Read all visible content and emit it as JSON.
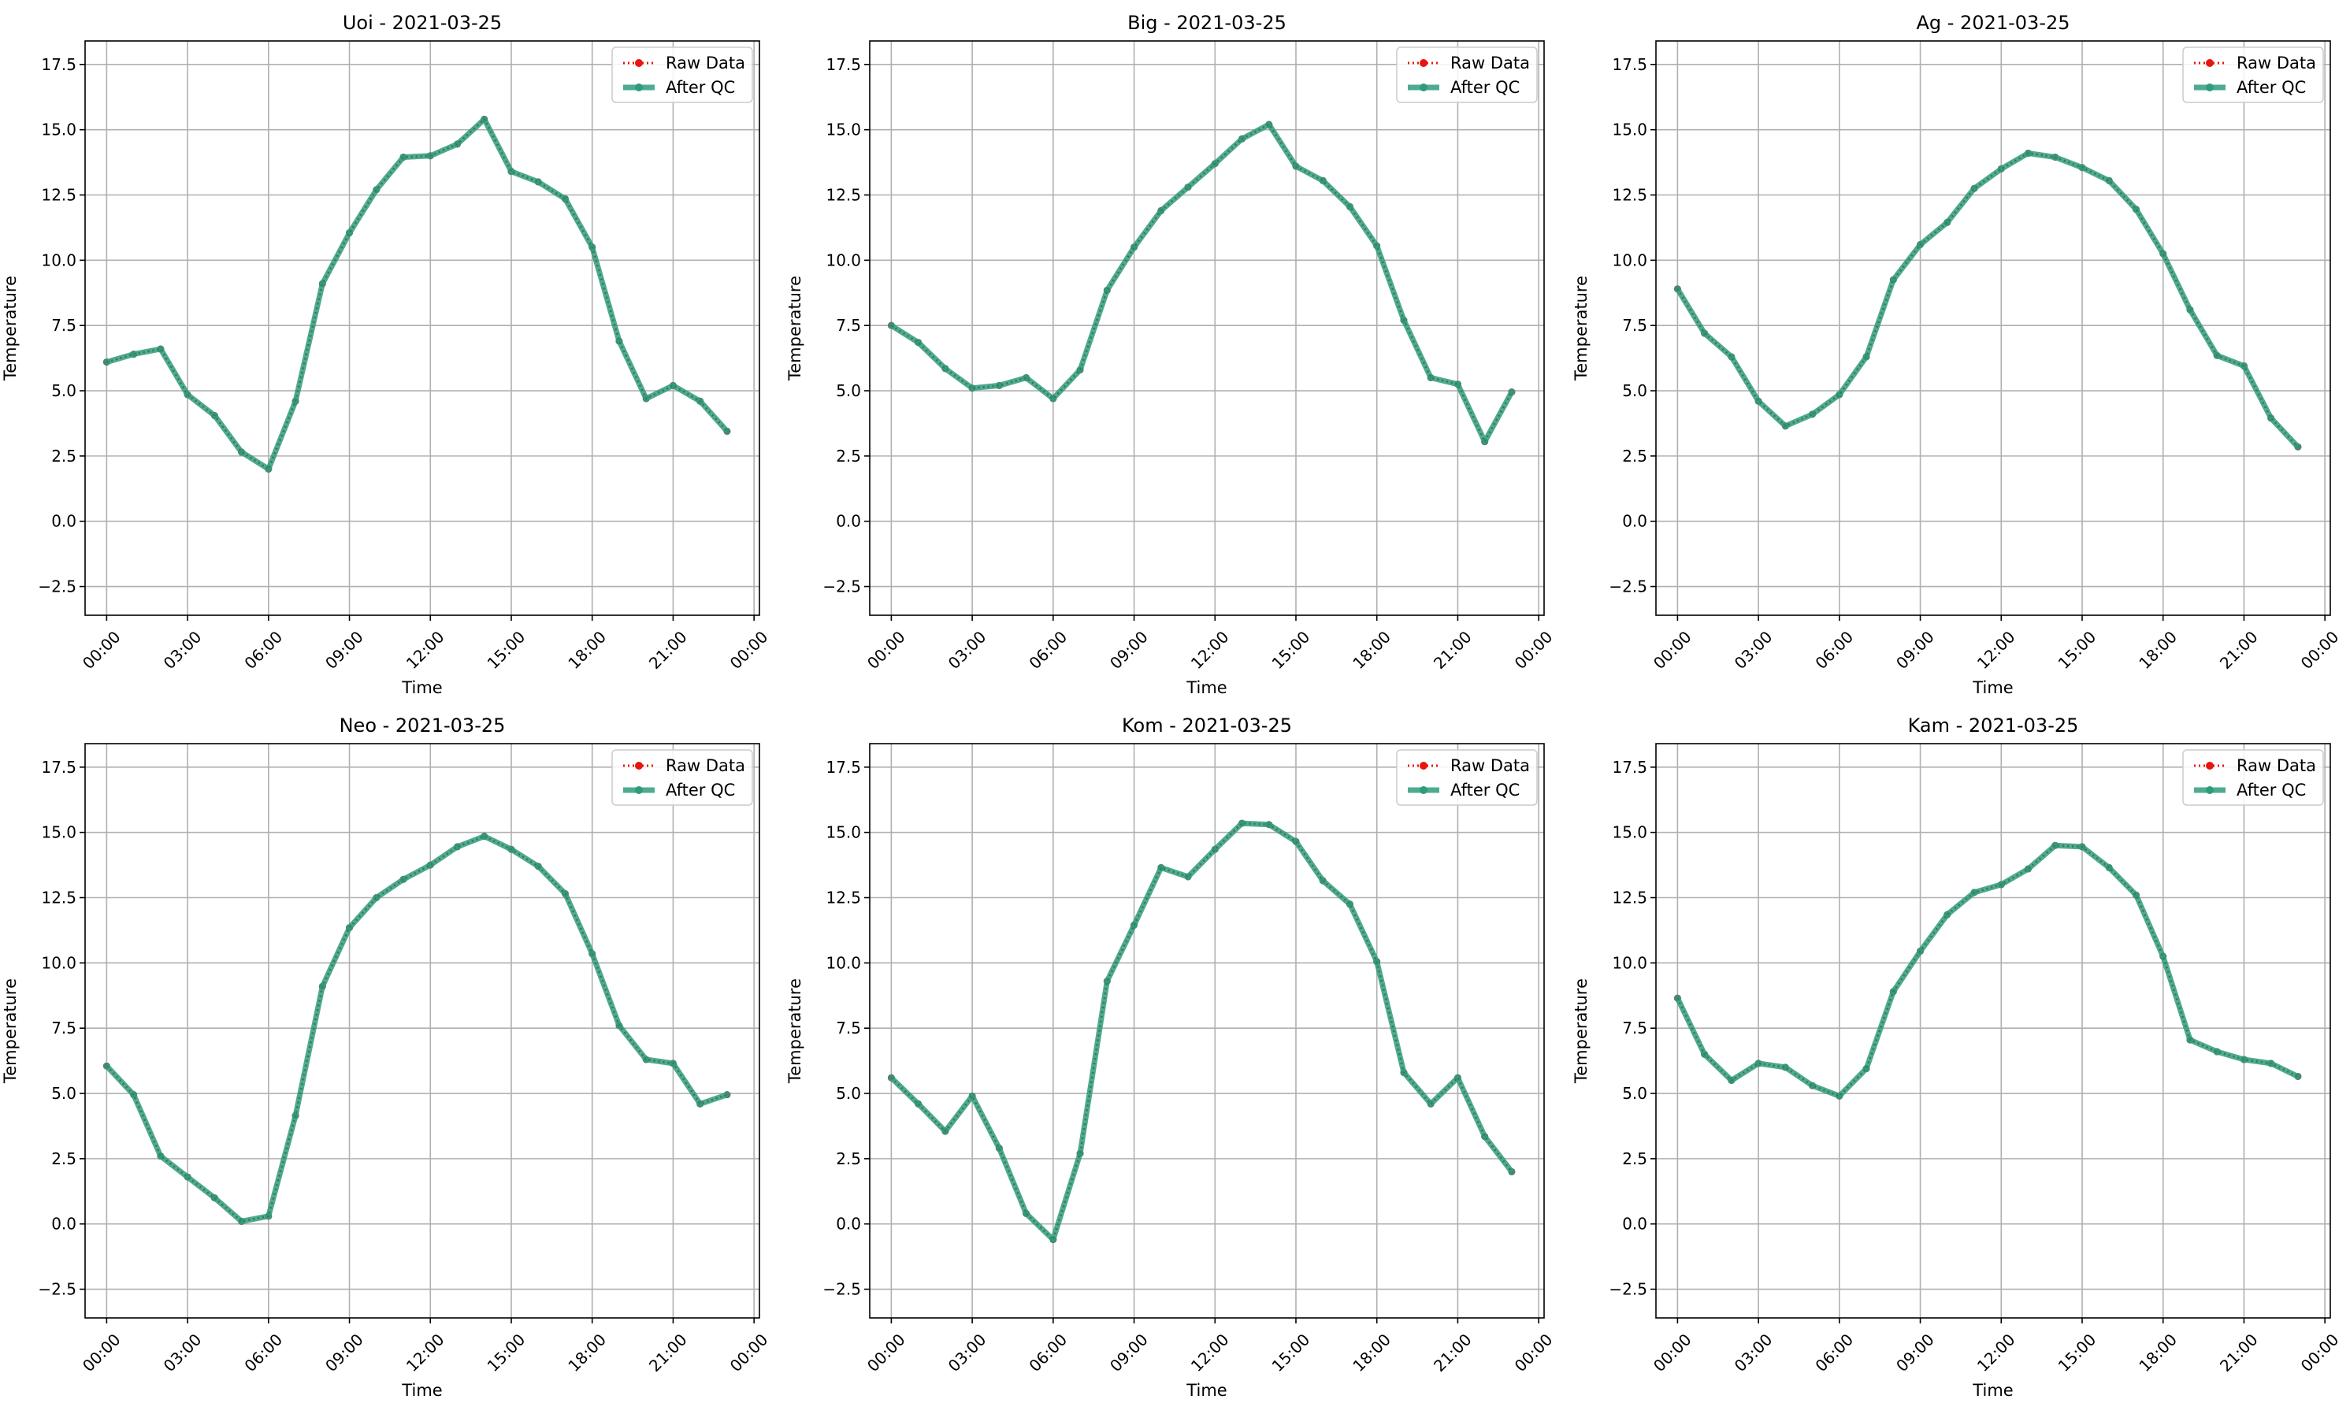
{
  "chart_data": [
    {
      "type": "line",
      "title": "Uoi - 2021-03-25",
      "xlabel": "Time",
      "ylabel": "Temperature",
      "ylim": [
        -3.6,
        18.4
      ],
      "yticks": [
        -2.5,
        0.0,
        2.5,
        5.0,
        7.5,
        10.0,
        12.5,
        15.0,
        17.5
      ],
      "xlim_hours": [
        -0.8,
        24.2
      ],
      "xtick_hours": [
        0,
        3,
        6,
        9,
        12,
        15,
        18,
        21,
        24
      ],
      "xtick_labels": [
        "00:00",
        "03:00",
        "06:00",
        "09:00",
        "12:00",
        "15:00",
        "18:00",
        "21:00",
        "00:00"
      ],
      "grid": true,
      "legend_position": "top-right",
      "series": [
        {
          "name": "Raw Data",
          "color": "#e8150e",
          "style": "dotted",
          "x_hours": [
            0,
            1,
            2,
            3,
            4,
            5,
            6,
            7,
            8,
            9,
            10,
            11,
            12,
            13,
            14,
            15,
            16,
            17,
            18,
            19,
            20,
            21,
            22,
            23
          ],
          "values": [
            6.1,
            6.4,
            6.6,
            4.85,
            4.05,
            2.65,
            2.0,
            4.6,
            9.1,
            11.05,
            12.7,
            13.95,
            14.0,
            14.45,
            15.4,
            13.4,
            13.0,
            12.35,
            10.5,
            6.9,
            4.7,
            5.2,
            4.6,
            3.45
          ]
        },
        {
          "name": "After QC",
          "color": "#2e9c7c",
          "style": "solid",
          "x_hours": [
            0,
            1,
            2,
            3,
            4,
            5,
            6,
            7,
            8,
            9,
            10,
            11,
            12,
            13,
            14,
            15,
            16,
            17,
            18,
            19,
            20,
            21,
            22,
            23
          ],
          "values": [
            6.1,
            6.4,
            6.6,
            4.85,
            4.05,
            2.65,
            2.0,
            4.6,
            9.1,
            11.05,
            12.7,
            13.95,
            14.0,
            14.45,
            15.4,
            13.4,
            13.0,
            12.35,
            10.5,
            6.9,
            4.7,
            5.2,
            4.6,
            3.45
          ]
        }
      ]
    },
    {
      "type": "line",
      "title": "Big - 2021-03-25",
      "xlabel": "Time",
      "ylabel": "Temperature",
      "ylim": [
        -3.6,
        18.4
      ],
      "yticks": [
        -2.5,
        0.0,
        2.5,
        5.0,
        7.5,
        10.0,
        12.5,
        15.0,
        17.5
      ],
      "xlim_hours": [
        -0.8,
        24.2
      ],
      "xtick_hours": [
        0,
        3,
        6,
        9,
        12,
        15,
        18,
        21,
        24
      ],
      "xtick_labels": [
        "00:00",
        "03:00",
        "06:00",
        "09:00",
        "12:00",
        "15:00",
        "18:00",
        "21:00",
        "00:00"
      ],
      "grid": true,
      "legend_position": "top-right",
      "series": [
        {
          "name": "Raw Data",
          "color": "#e8150e",
          "style": "dotted",
          "x_hours": [
            0,
            1,
            2,
            3,
            4,
            5,
            6,
            7,
            8,
            9,
            10,
            11,
            12,
            13,
            14,
            15,
            16,
            17,
            18,
            19,
            20,
            21,
            22,
            23
          ],
          "values": [
            7.5,
            6.85,
            5.85,
            5.1,
            5.2,
            5.5,
            4.7,
            5.8,
            8.85,
            10.5,
            11.9,
            12.8,
            13.7,
            14.65,
            15.2,
            13.6,
            13.05,
            12.05,
            10.55,
            7.7,
            5.5,
            5.25,
            3.05,
            4.95
          ]
        },
        {
          "name": "After QC",
          "color": "#2e9c7c",
          "style": "solid",
          "x_hours": [
            0,
            1,
            2,
            3,
            4,
            5,
            6,
            7,
            8,
            9,
            10,
            11,
            12,
            13,
            14,
            15,
            16,
            17,
            18,
            19,
            20,
            21,
            22,
            23
          ],
          "values": [
            7.5,
            6.85,
            5.85,
            5.1,
            5.2,
            5.5,
            4.7,
            5.8,
            8.85,
            10.5,
            11.9,
            12.8,
            13.7,
            14.65,
            15.2,
            13.6,
            13.05,
            12.05,
            10.55,
            7.7,
            5.5,
            5.25,
            3.05,
            4.95
          ]
        }
      ]
    },
    {
      "type": "line",
      "title": "Ag - 2021-03-25",
      "xlabel": "Time",
      "ylabel": "Temperature",
      "ylim": [
        -3.6,
        18.4
      ],
      "yticks": [
        -2.5,
        0.0,
        2.5,
        5.0,
        7.5,
        10.0,
        12.5,
        15.0,
        17.5
      ],
      "xlim_hours": [
        -0.8,
        24.2
      ],
      "xtick_hours": [
        0,
        3,
        6,
        9,
        12,
        15,
        18,
        21,
        24
      ],
      "xtick_labels": [
        "00:00",
        "03:00",
        "06:00",
        "09:00",
        "12:00",
        "15:00",
        "18:00",
        "21:00",
        "00:00"
      ],
      "grid": true,
      "legend_position": "top-right",
      "series": [
        {
          "name": "Raw Data",
          "color": "#e8150e",
          "style": "dotted",
          "x_hours": [
            0,
            1,
            2,
            3,
            4,
            5,
            6,
            7,
            8,
            9,
            10,
            11,
            12,
            13,
            14,
            15,
            16,
            17,
            18,
            19,
            20,
            21,
            22,
            23
          ],
          "values": [
            8.9,
            7.2,
            6.3,
            4.6,
            3.65,
            4.1,
            4.85,
            6.3,
            9.25,
            10.6,
            11.45,
            12.75,
            13.5,
            14.1,
            13.95,
            13.55,
            13.05,
            11.95,
            10.25,
            8.1,
            6.35,
            5.95,
            3.95,
            2.85
          ]
        },
        {
          "name": "After QC",
          "color": "#2e9c7c",
          "style": "solid",
          "x_hours": [
            0,
            1,
            2,
            3,
            4,
            5,
            6,
            7,
            8,
            9,
            10,
            11,
            12,
            13,
            14,
            15,
            16,
            17,
            18,
            19,
            20,
            21,
            22,
            23
          ],
          "values": [
            8.9,
            7.2,
            6.3,
            4.6,
            3.65,
            4.1,
            4.85,
            6.3,
            9.25,
            10.6,
            11.45,
            12.75,
            13.5,
            14.1,
            13.95,
            13.55,
            13.05,
            11.95,
            10.25,
            8.1,
            6.35,
            5.95,
            3.95,
            2.85
          ]
        }
      ]
    },
    {
      "type": "line",
      "title": "Neo - 2021-03-25",
      "xlabel": "Time",
      "ylabel": "Temperature",
      "ylim": [
        -3.6,
        18.4
      ],
      "yticks": [
        -2.5,
        0.0,
        2.5,
        5.0,
        7.5,
        10.0,
        12.5,
        15.0,
        17.5
      ],
      "xlim_hours": [
        -0.8,
        24.2
      ],
      "xtick_hours": [
        0,
        3,
        6,
        9,
        12,
        15,
        18,
        21,
        24
      ],
      "xtick_labels": [
        "00:00",
        "03:00",
        "06:00",
        "09:00",
        "12:00",
        "15:00",
        "18:00",
        "21:00",
        "00:00"
      ],
      "grid": true,
      "legend_position": "top-right",
      "series": [
        {
          "name": "Raw Data",
          "color": "#e8150e",
          "style": "dotted",
          "x_hours": [
            0,
            1,
            2,
            3,
            4,
            5,
            6,
            7,
            8,
            9,
            10,
            11,
            12,
            13,
            14,
            15,
            16,
            17,
            18,
            19,
            20,
            21,
            22,
            23
          ],
          "values": [
            6.05,
            4.95,
            2.6,
            1.8,
            1.0,
            0.1,
            0.3,
            4.15,
            9.1,
            11.35,
            12.5,
            13.2,
            13.75,
            14.45,
            14.85,
            14.35,
            13.7,
            12.65,
            10.35,
            7.6,
            6.3,
            6.15,
            4.6,
            4.95
          ]
        },
        {
          "name": "After QC",
          "color": "#2e9c7c",
          "style": "solid",
          "x_hours": [
            0,
            1,
            2,
            3,
            4,
            5,
            6,
            7,
            8,
            9,
            10,
            11,
            12,
            13,
            14,
            15,
            16,
            17,
            18,
            19,
            20,
            21,
            22,
            23
          ],
          "values": [
            6.05,
            4.95,
            2.6,
            1.8,
            1.0,
            0.1,
            0.3,
            4.15,
            9.1,
            11.35,
            12.5,
            13.2,
            13.75,
            14.45,
            14.85,
            14.35,
            13.7,
            12.65,
            10.35,
            7.6,
            6.3,
            6.15,
            4.6,
            4.95
          ]
        }
      ]
    },
    {
      "type": "line",
      "title": "Kom - 2021-03-25",
      "xlabel": "Time",
      "ylabel": "Temperature",
      "ylim": [
        -3.6,
        18.4
      ],
      "yticks": [
        -2.5,
        0.0,
        2.5,
        5.0,
        7.5,
        10.0,
        12.5,
        15.0,
        17.5
      ],
      "xlim_hours": [
        -0.8,
        24.2
      ],
      "xtick_hours": [
        0,
        3,
        6,
        9,
        12,
        15,
        18,
        21,
        24
      ],
      "xtick_labels": [
        "00:00",
        "03:00",
        "06:00",
        "09:00",
        "12:00",
        "15:00",
        "18:00",
        "21:00",
        "00:00"
      ],
      "grid": true,
      "legend_position": "top-right",
      "series": [
        {
          "name": "Raw Data",
          "color": "#e8150e",
          "style": "dotted",
          "x_hours": [
            0,
            1,
            2,
            3,
            4,
            5,
            6,
            7,
            8,
            9,
            10,
            11,
            12,
            13,
            14,
            15,
            16,
            17,
            18,
            19,
            20,
            21,
            22,
            23
          ],
          "values": [
            5.6,
            4.6,
            3.55,
            4.9,
            2.9,
            0.4,
            -0.6,
            2.7,
            9.3,
            11.45,
            13.65,
            13.3,
            14.35,
            15.35,
            15.3,
            14.65,
            13.15,
            12.25,
            10.05,
            5.8,
            4.6,
            5.6,
            3.35,
            2.0
          ]
        },
        {
          "name": "After QC",
          "color": "#2e9c7c",
          "style": "solid",
          "x_hours": [
            0,
            1,
            2,
            3,
            4,
            5,
            6,
            7,
            8,
            9,
            10,
            11,
            12,
            13,
            14,
            15,
            16,
            17,
            18,
            19,
            20,
            21,
            22,
            23
          ],
          "values": [
            5.6,
            4.6,
            3.55,
            4.9,
            2.9,
            0.4,
            -0.6,
            2.7,
            9.3,
            11.45,
            13.65,
            13.3,
            14.35,
            15.35,
            15.3,
            14.65,
            13.15,
            12.25,
            10.05,
            5.8,
            4.6,
            5.6,
            3.35,
            2.0
          ]
        }
      ]
    },
    {
      "type": "line",
      "title": "Kam - 2021-03-25",
      "xlabel": "Time",
      "ylabel": "Temperature",
      "ylim": [
        -3.6,
        18.4
      ],
      "yticks": [
        -2.5,
        0.0,
        2.5,
        5.0,
        7.5,
        10.0,
        12.5,
        15.0,
        17.5
      ],
      "xlim_hours": [
        -0.8,
        24.2
      ],
      "xtick_hours": [
        0,
        3,
        6,
        9,
        12,
        15,
        18,
        21,
        24
      ],
      "xtick_labels": [
        "00:00",
        "03:00",
        "06:00",
        "09:00",
        "12:00",
        "15:00",
        "18:00",
        "21:00",
        "00:00"
      ],
      "grid": true,
      "legend_position": "top-right",
      "series": [
        {
          "name": "Raw Data",
          "color": "#e8150e",
          "style": "dotted",
          "x_hours": [
            0,
            1,
            2,
            3,
            4,
            5,
            6,
            7,
            8,
            9,
            10,
            11,
            12,
            13,
            14,
            15,
            16,
            17,
            18,
            19,
            20,
            21,
            22,
            23
          ],
          "values": [
            8.65,
            6.5,
            5.5,
            6.15,
            6.0,
            5.3,
            4.9,
            5.95,
            8.9,
            10.45,
            11.85,
            12.7,
            13.0,
            13.6,
            14.5,
            14.45,
            13.65,
            12.6,
            10.25,
            7.05,
            6.6,
            6.3,
            6.15,
            5.65
          ]
        },
        {
          "name": "After QC",
          "color": "#2e9c7c",
          "style": "solid",
          "x_hours": [
            0,
            1,
            2,
            3,
            4,
            5,
            6,
            7,
            8,
            9,
            10,
            11,
            12,
            13,
            14,
            15,
            16,
            17,
            18,
            19,
            20,
            21,
            22,
            23
          ],
          "values": [
            8.65,
            6.5,
            5.5,
            6.15,
            6.0,
            5.3,
            4.9,
            5.95,
            8.9,
            10.45,
            11.85,
            12.7,
            13.0,
            13.6,
            14.5,
            14.45,
            13.65,
            12.6,
            10.25,
            7.05,
            6.6,
            6.3,
            6.15,
            5.65
          ]
        }
      ]
    }
  ]
}
